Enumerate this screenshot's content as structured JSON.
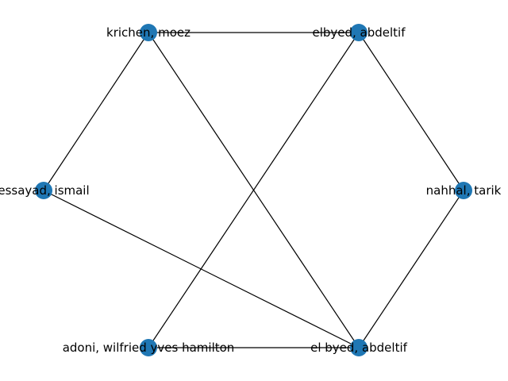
{
  "graph": {
    "node_color": "#1f77b4",
    "edge_color": "#000000",
    "nodes": [
      {
        "id": "krichen",
        "label": "krichen, moez"
      },
      {
        "id": "elbyed",
        "label": "elbyed, abdeltif"
      },
      {
        "id": "essayad",
        "label": "essayad, ismail"
      },
      {
        "id": "nahhal",
        "label": "nahhal, tarik"
      },
      {
        "id": "adoni",
        "label": "adoni, wilfried yves hamilton"
      },
      {
        "id": "el_byed",
        "label": "el byed, abdeltif"
      }
    ],
    "edges": [
      {
        "source": "krichen",
        "target": "elbyed"
      },
      {
        "source": "krichen",
        "target": "essayad"
      },
      {
        "source": "krichen",
        "target": "el_byed"
      },
      {
        "source": "elbyed",
        "target": "nahhal"
      },
      {
        "source": "elbyed",
        "target": "adoni"
      },
      {
        "source": "essayad",
        "target": "el_byed"
      },
      {
        "source": "nahhal",
        "target": "el_byed"
      },
      {
        "source": "adoni",
        "target": "el_byed"
      }
    ]
  }
}
